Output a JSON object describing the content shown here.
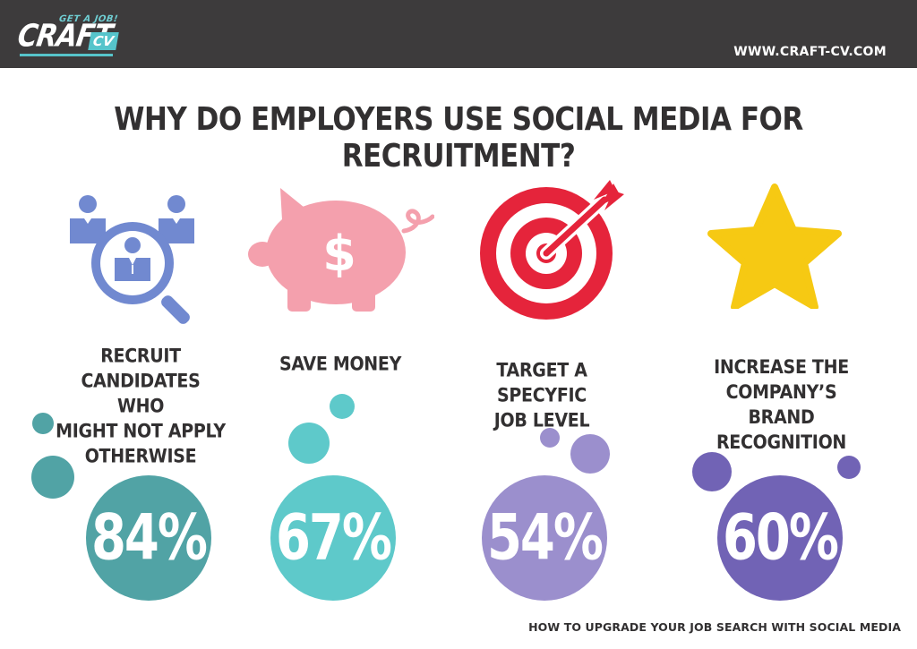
{
  "header": {
    "logo_tagline": "GET A JOB!",
    "logo_main": "CRAFT",
    "logo_cv": "CV",
    "url": "WWW.CRAFT-CV.COM"
  },
  "title": "WHY DO EMPLOYERS USE SOCIAL MEDIA FOR RECRUITMENT?",
  "reasons": [
    {
      "icon": "people-search-icon",
      "label_lines": [
        "RECRUIT",
        "CANDIDATES WHO",
        "MIGHT NOT APPLY",
        "OTHERWISE"
      ],
      "percent": "84%",
      "color": "#51a3a5"
    },
    {
      "icon": "piggy-bank-icon",
      "label_lines": [
        "SAVE MONEY"
      ],
      "percent": "67%",
      "color": "#5ec9ca"
    },
    {
      "icon": "target-icon",
      "label_lines": [
        "TARGET A SPECYFIC",
        "JOB LEVEL"
      ],
      "percent": "54%",
      "color": "#9b8fcd"
    },
    {
      "icon": "star-icon",
      "label_lines": [
        "INCREASE  THE",
        "COMPANY’S",
        "BRAND RECOGNITION"
      ],
      "percent": "60%",
      "color": "#7163b5"
    }
  ],
  "footer": "HOW TO UPGRADE YOUR JOB SEARCH WITH SOCIAL MEDIA",
  "colors": {
    "header_bg": "#3d3b3c",
    "teal_dark": "#51a3a5",
    "teal_light": "#5ec9ca",
    "lavender": "#9b8fcd",
    "purple": "#7163b5",
    "pink": "#f4a0ad",
    "red": "#e5243b",
    "yellow": "#f6c913",
    "blue": "#7189d0"
  }
}
